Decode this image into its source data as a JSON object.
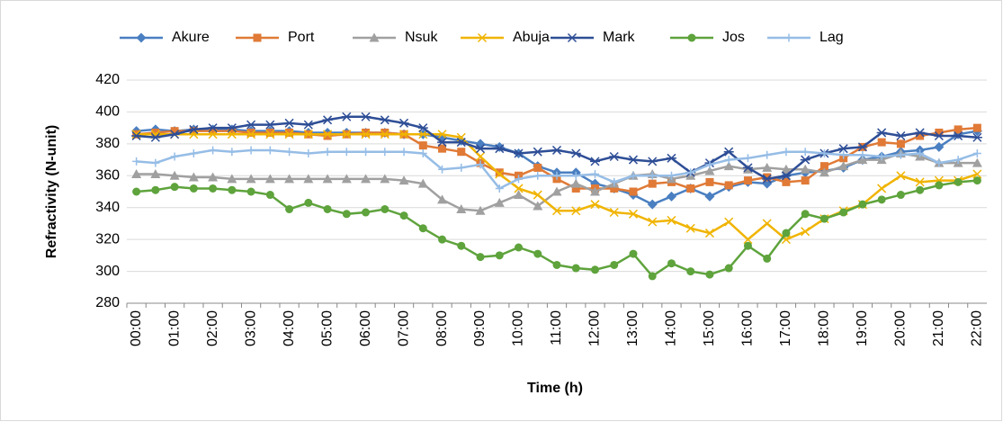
{
  "chart_data": {
    "type": "line",
    "y_label": "Refractivity (N-unit)",
    "x_label": "Time (h)",
    "categories": [
      "00:00",
      null,
      "01:00",
      null,
      "02:00",
      null,
      "03:00",
      null,
      "04:00",
      null,
      "05:00",
      null,
      "06:00",
      null,
      "07:00",
      null,
      "08:00",
      null,
      "09:00",
      null,
      "10:00",
      null,
      "11:00",
      null,
      "12:00",
      null,
      "13:00",
      null,
      "14:00",
      null,
      "15:00",
      null,
      "16:00",
      null,
      "17:00",
      null,
      "18:00",
      null,
      "19:00",
      null,
      "20:00",
      null,
      "21:00",
      null,
      "22:00"
    ],
    "ylim": [
      280,
      420
    ],
    "yticks": [
      280,
      300,
      320,
      340,
      360,
      380,
      400,
      420
    ],
    "grid": true,
    "legend": "top",
    "series": [
      {
        "name": "Akure",
        "color": "#4a7fc1",
        "marker": "diamond",
        "values": [
          388,
          389,
          388,
          389,
          389,
          389,
          388,
          388,
          388,
          387,
          387,
          387,
          387,
          387,
          386,
          386,
          384,
          382,
          380,
          378,
          374,
          366,
          362,
          362,
          355,
          352,
          348,
          342,
          347,
          352,
          347,
          353,
          356,
          355,
          360,
          362,
          363,
          365,
          370,
          372,
          375,
          376,
          378,
          386,
          388
        ]
      },
      {
        "name": "Port",
        "color": "#e07a36",
        "marker": "square",
        "values": [
          386,
          387,
          388,
          388,
          388,
          388,
          387,
          387,
          387,
          386,
          385,
          386,
          387,
          387,
          386,
          379,
          377,
          375,
          368,
          362,
          360,
          365,
          358,
          352,
          352,
          352,
          350,
          355,
          356,
          352,
          356,
          354,
          357,
          359,
          356,
          357,
          366,
          371,
          378,
          381,
          380,
          385,
          387,
          389,
          390
        ]
      },
      {
        "name": "Nsuk",
        "color": "#a0a0a0",
        "marker": "triangle",
        "values": [
          361,
          361,
          360,
          359,
          359,
          358,
          358,
          358,
          358,
          358,
          358,
          358,
          358,
          358,
          357,
          355,
          345,
          339,
          338,
          343,
          348,
          341,
          350,
          355,
          350,
          355,
          360,
          361,
          358,
          360,
          363,
          366,
          364,
          365,
          364,
          364,
          362,
          366,
          370,
          370,
          374,
          372,
          368,
          368,
          368
        ]
      },
      {
        "name": "Abuja",
        "color": "#f0b400",
        "marker": "x",
        "values": [
          386,
          386,
          386,
          386,
          386,
          386,
          386,
          386,
          386,
          386,
          386,
          386,
          386,
          386,
          386,
          386,
          386,
          384,
          372,
          361,
          352,
          348,
          338,
          338,
          342,
          337,
          336,
          331,
          332,
          327,
          324,
          331,
          320,
          330,
          320,
          325,
          333,
          338,
          342,
          352,
          360,
          356,
          357,
          357,
          361
        ]
      },
      {
        "name": "Mark",
        "color": "#2e4e96",
        "marker": "star",
        "values": [
          385,
          384,
          386,
          389,
          390,
          390,
          392,
          392,
          393,
          392,
          395,
          397,
          397,
          395,
          393,
          390,
          381,
          381,
          377,
          377,
          374,
          375,
          376,
          374,
          369,
          372,
          370,
          369,
          371,
          362,
          368,
          375,
          365,
          358,
          360,
          370,
          374,
          377,
          378,
          387,
          385,
          387,
          385,
          385,
          384
        ]
      },
      {
        "name": "Jos",
        "color": "#5ea33c",
        "marker": "circle",
        "values": [
          350,
          351,
          353,
          352,
          352,
          351,
          350,
          348,
          339,
          343,
          339,
          336,
          337,
          339,
          335,
          327,
          320,
          316,
          309,
          310,
          315,
          311,
          304,
          302,
          301,
          304,
          311,
          297,
          305,
          300,
          298,
          302,
          316,
          308,
          324,
          336,
          333,
          337,
          342,
          345,
          348,
          351,
          354,
          356,
          357
        ]
      },
      {
        "name": "Lag",
        "color": "#96bde6",
        "marker": "plus",
        "values": [
          369,
          368,
          372,
          374,
          376,
          375,
          376,
          376,
          375,
          374,
          375,
          375,
          375,
          375,
          375,
          374,
          364,
          365,
          367,
          352,
          358,
          360,
          360,
          360,
          361,
          356,
          360,
          360,
          360,
          362,
          367,
          370,
          371,
          373,
          375,
          375,
          374,
          373,
          373,
          372,
          373,
          374,
          368,
          370,
          374
        ]
      }
    ]
  }
}
